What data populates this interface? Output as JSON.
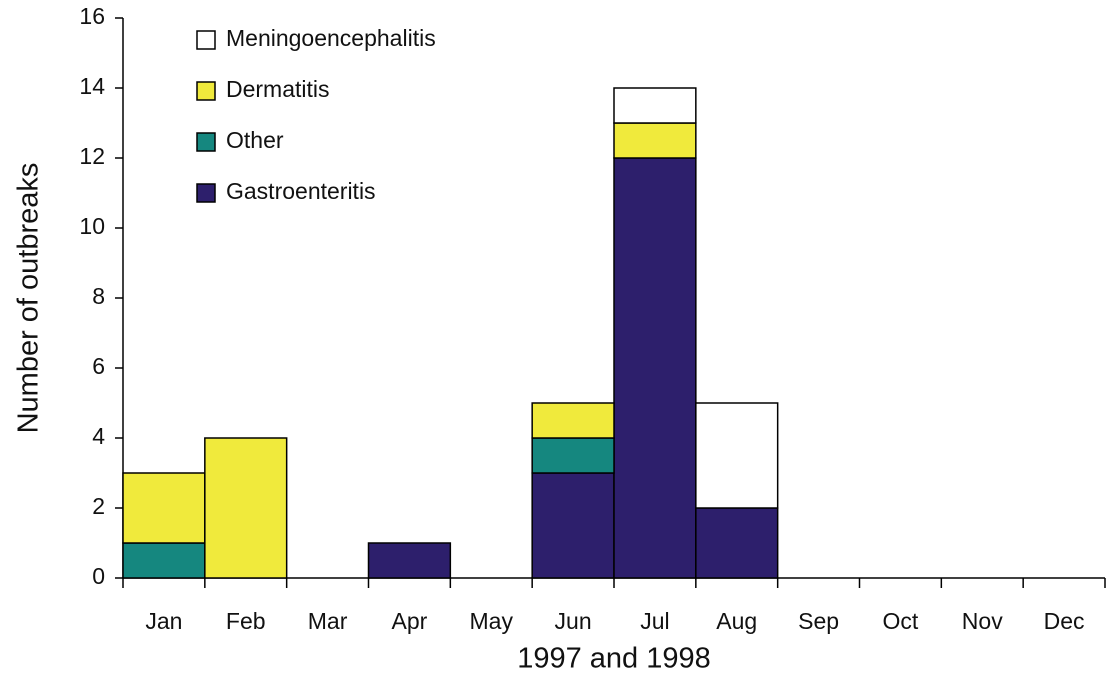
{
  "chart_data": {
    "type": "stacked_bar",
    "x_label": "1997 and 1998",
    "y_label": "Number of outbreaks",
    "categories": [
      "Jan",
      "Feb",
      "Mar",
      "Apr",
      "May",
      "Jun",
      "Jul",
      "Aug",
      "Sep",
      "Oct",
      "Nov",
      "Dec"
    ],
    "series": [
      {
        "name": "Gastroenteritis",
        "color": "#2d1f6c",
        "values": [
          0,
          0,
          0,
          1,
          0,
          3,
          12,
          2,
          0,
          0,
          0,
          0
        ]
      },
      {
        "name": "Other",
        "color": "#15877f",
        "values": [
          1,
          0,
          0,
          0,
          0,
          1,
          0,
          0,
          0,
          0,
          0,
          0
        ]
      },
      {
        "name": "Dermatitis",
        "color": "#f0ea3c",
        "values": [
          2,
          4,
          0,
          0,
          0,
          1,
          1,
          0,
          0,
          0,
          0,
          0
        ]
      },
      {
        "name": "Meningoencephalitis",
        "color": "#ffffff",
        "values": [
          0,
          0,
          0,
          0,
          0,
          0,
          1,
          3,
          0,
          0,
          0,
          0
        ]
      }
    ],
    "ylim": [
      0,
      16
    ],
    "yticks": [
      0,
      2,
      4,
      6,
      8,
      10,
      12,
      14,
      16
    ],
    "legend": "upper left"
  }
}
